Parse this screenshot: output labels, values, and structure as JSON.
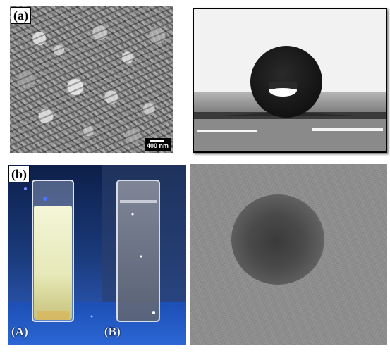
{
  "panel_a": {
    "label": "(a)",
    "scale_bar_text": "400 nm"
  },
  "panel_b": {
    "label": "(b)",
    "vial_left_label": "(A)",
    "vial_right_label": "(B)"
  },
  "colors": {
    "uv_background": "#1a3a7a",
    "emission": "#e8ecc0",
    "tem_background": "#8e8e8e"
  }
}
